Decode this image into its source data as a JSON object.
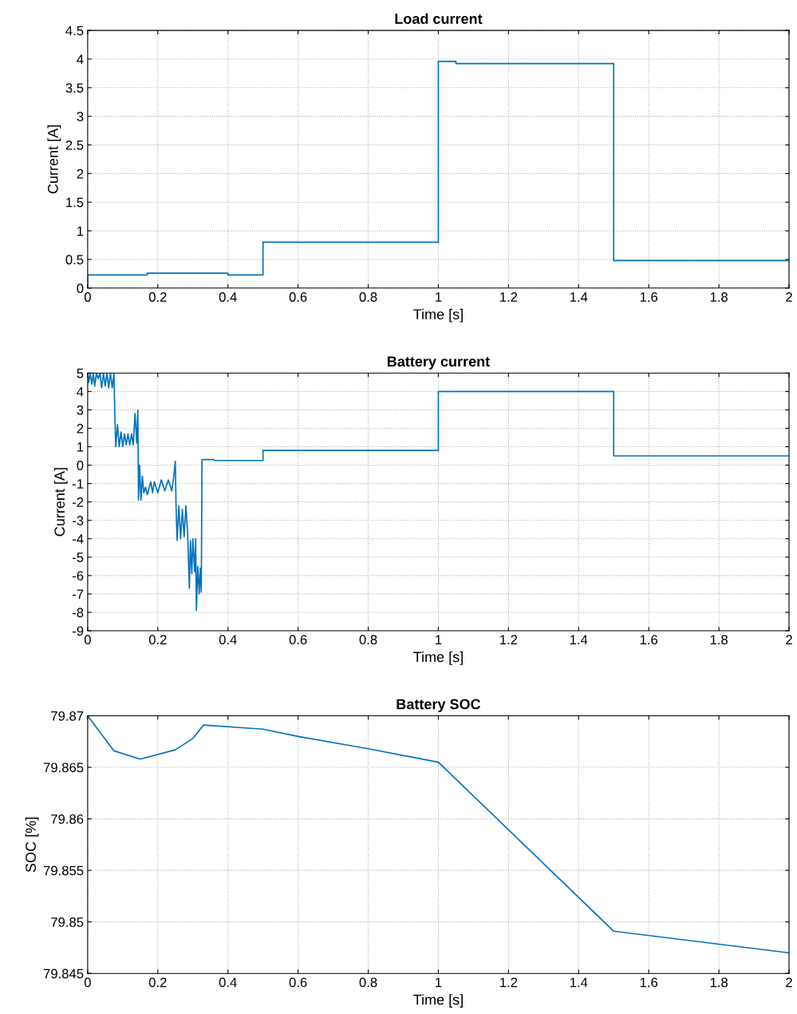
{
  "chart_data": [
    {
      "type": "line",
      "title": "Load current",
      "xlabel": "Time [s]",
      "ylabel": "Current [A]",
      "xlim": [
        0,
        2
      ],
      "xticks": [
        0,
        0.2,
        0.4,
        0.6,
        0.8,
        1,
        1.2,
        1.4,
        1.6,
        1.8,
        2
      ],
      "ylim": [
        0,
        4.5
      ],
      "yticks": [
        0,
        0.5,
        1,
        1.5,
        2,
        2.5,
        3,
        3.5,
        4,
        4.5
      ],
      "grid": true,
      "line_style": "solid",
      "marker": "none",
      "series": [
        {
          "color": "#0072bd",
          "x": [
            0,
            0,
            0.17,
            0.17,
            0.4,
            0.4,
            0.5,
            0.5,
            1.0,
            1.0,
            1.05,
            1.05,
            1.5,
            1.5,
            2.0
          ],
          "values": [
            0,
            0.23,
            0.23,
            0.26,
            0.26,
            0.23,
            0.23,
            0.8,
            0.8,
            3.96,
            3.96,
            3.92,
            3.92,
            0.48,
            0.48
          ]
        }
      ]
    },
    {
      "type": "line",
      "title": "Battery current",
      "xlabel": "Time [s]",
      "ylabel": "Current [A]",
      "xlim": [
        0,
        2
      ],
      "xticks": [
        0,
        0.2,
        0.4,
        0.6,
        0.8,
        1,
        1.2,
        1.4,
        1.6,
        1.8,
        2
      ],
      "ylim": [
        -9,
        5
      ],
      "yticks": [
        -9,
        -8,
        -7,
        -6,
        -5,
        -4,
        -3,
        -2,
        -1,
        0,
        1,
        2,
        3,
        4,
        5
      ],
      "grid": true,
      "line_style": "solid",
      "marker": "none",
      "series": [
        {
          "color": "#0072bd",
          "x": [
            0,
            0.003,
            0.007,
            0.012,
            0.016,
            0.02,
            0.025,
            0.03,
            0.035,
            0.04,
            0.045,
            0.05,
            0.055,
            0.06,
            0.065,
            0.07,
            0.075,
            0.077,
            0.08,
            0.085,
            0.09,
            0.095,
            0.1,
            0.105,
            0.11,
            0.115,
            0.12,
            0.125,
            0.13,
            0.135,
            0.14,
            0.143,
            0.145,
            0.148,
            0.152,
            0.156,
            0.16,
            0.165,
            0.17,
            0.18,
            0.185,
            0.19,
            0.2,
            0.21,
            0.22,
            0.23,
            0.24,
            0.245,
            0.25,
            0.252,
            0.255,
            0.26,
            0.265,
            0.27,
            0.275,
            0.28,
            0.285,
            0.29,
            0.293,
            0.297,
            0.3,
            0.305,
            0.308,
            0.31,
            0.314,
            0.318,
            0.321,
            0.324,
            0.326,
            0.36,
            0.362,
            0.5,
            0.5,
            1.0,
            1.0,
            1.5,
            1.5,
            2.0
          ],
          "values": [
            5,
            4.5,
            5,
            4.4,
            5,
            4.3,
            5,
            4.7,
            5,
            4.2,
            5,
            4.3,
            5,
            4.2,
            5,
            4.2,
            5,
            3.1,
            1.0,
            2.2,
            1.0,
            1.8,
            1.0,
            1.7,
            1.1,
            1.7,
            1.1,
            1.7,
            1.1,
            2.8,
            1.2,
            3.0,
            -1.9,
            0.0,
            -1.9,
            -0.6,
            -1.5,
            -1.2,
            -1.6,
            -0.9,
            -1.5,
            -0.9,
            -1.5,
            -0.8,
            -1.4,
            -0.8,
            -1.4,
            -0.7,
            0.2,
            -2.2,
            -4.1,
            -2.2,
            -4.0,
            -2.4,
            -3.9,
            -2.2,
            -3.7,
            -6.7,
            -4.1,
            -5.9,
            -4.0,
            -5.8,
            -4.0,
            -7.9,
            -5.5,
            -7.0,
            -5.6,
            -6.9,
            0.3,
            0.3,
            0.25,
            0.25,
            0.8,
            0.8,
            4.0,
            4.0,
            0.5,
            0.5
          ]
        }
      ]
    },
    {
      "type": "line",
      "title": "Battery SOC",
      "xlabel": "Time [s]",
      "ylabel": "SOC [%]",
      "xlim": [
        0,
        2
      ],
      "xticks": [
        0,
        0.2,
        0.4,
        0.6,
        0.8,
        1,
        1.2,
        1.4,
        1.6,
        1.8,
        2
      ],
      "ylim": [
        79.845,
        79.87
      ],
      "yticks": [
        79.845,
        79.85,
        79.855,
        79.86,
        79.865,
        79.87
      ],
      "grid": true,
      "line_style": "solid",
      "marker": "none",
      "series": [
        {
          "color": "#0072bd",
          "x": [
            0,
            0.075,
            0.15,
            0.25,
            0.3,
            0.33,
            0.5,
            0.6,
            0.8,
            1.0,
            1.5,
            2.0
          ],
          "values": [
            79.87,
            79.8666,
            79.8658,
            79.8667,
            79.8678,
            79.8691,
            79.8687,
            79.868,
            79.8668,
            79.8655,
            79.8491,
            79.847
          ]
        }
      ]
    }
  ]
}
